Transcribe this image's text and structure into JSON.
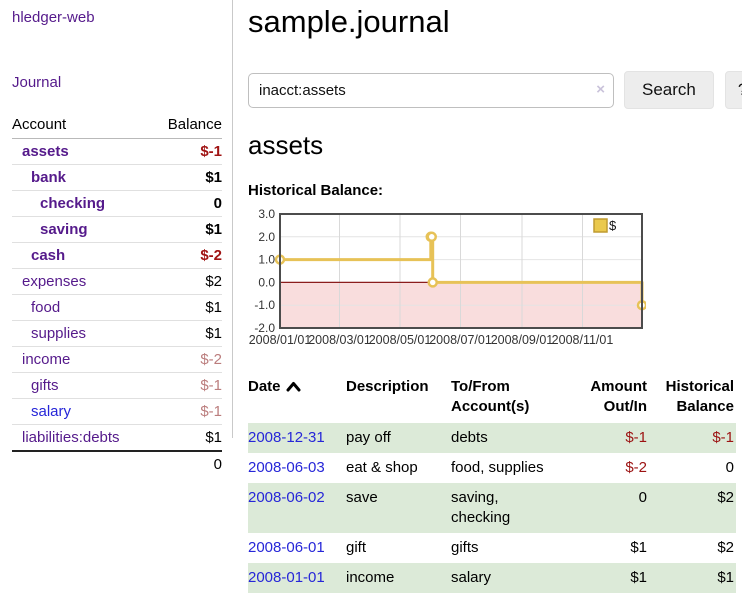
{
  "app": {
    "brand": "hledger-web"
  },
  "sidebar": {
    "journal_link": "Journal",
    "header": {
      "account": "Account",
      "balance": "Balance"
    },
    "accounts": [
      {
        "name": "assets",
        "balance": "$-1"
      },
      {
        "name": "bank",
        "balance": "$1"
      },
      {
        "name": "checking",
        "balance": "0"
      },
      {
        "name": "saving",
        "balance": "$1"
      },
      {
        "name": "cash",
        "balance": "$-2"
      },
      {
        "name": "expenses",
        "balance": "$2"
      },
      {
        "name": "food",
        "balance": "$1"
      },
      {
        "name": "supplies",
        "balance": "$1"
      },
      {
        "name": "income",
        "balance": "$-2"
      },
      {
        "name": "gifts",
        "balance": "$-1"
      },
      {
        "name": "salary",
        "balance": "$-1"
      },
      {
        "name": "liabilities:debts",
        "balance": "$1"
      }
    ],
    "total": "0"
  },
  "main": {
    "title": "sample.journal",
    "search": {
      "query": "inacct:assets",
      "clear_icon": "×",
      "search_button": "Search",
      "help_button": "?"
    },
    "account_heading": "assets",
    "chart_label": "Historical Balance:",
    "register": {
      "headers": [
        "Date",
        "Description",
        "To/From Account(s)",
        "Amount Out/In",
        "Historical Balance"
      ],
      "rows": [
        {
          "date": "2008-12-31",
          "description": "pay off",
          "accounts": "debts",
          "amount": "$-1",
          "balance": "$-1"
        },
        {
          "date": "2008-06-03",
          "description": "eat & shop",
          "accounts": "food, supplies",
          "amount": "$-2",
          "balance": "0"
        },
        {
          "date": "2008-06-02",
          "description": "save",
          "accounts": "saving, checking",
          "amount": "0",
          "balance": "$2"
        },
        {
          "date": "2008-06-01",
          "description": "gift",
          "accounts": "gifts",
          "amount": "$1",
          "balance": "$2"
        },
        {
          "date": "2008-01-01",
          "description": "income",
          "accounts": "salary",
          "amount": "$1",
          "balance": "$1"
        }
      ]
    }
  },
  "colors": {
    "link_purple": "#551a8b",
    "link_blue": "#2626d8",
    "negative_strong": "#a01414",
    "negative_soft": "#bb7d7d",
    "row_green": "#dcead8",
    "chart_line": "#e7c257"
  },
  "chart_data": {
    "type": "line",
    "step": true,
    "title": "Historical Balance",
    "series": [
      {
        "name": "$",
        "color": "#e7c257",
        "points": [
          [
            "2008-01-01",
            1
          ],
          [
            "2008-06-01",
            2
          ],
          [
            "2008-06-02",
            2
          ],
          [
            "2008-06-03",
            0
          ],
          [
            "2008-12-31",
            -1
          ]
        ]
      }
    ],
    "xlim": [
      "2008-01-01",
      "2008-12-31"
    ],
    "ylim": [
      -2,
      3
    ],
    "yticks": [
      3,
      2,
      1,
      0,
      -1,
      -2
    ],
    "ytick_labels": [
      "3.0",
      "2.0",
      "1.0",
      "0.0",
      "-1.0",
      "-2.0"
    ],
    "xticks": [
      "2008-01-01",
      "2008-03-01",
      "2008-05-01",
      "2008-07-01",
      "2008-09-01",
      "2008-11-01"
    ],
    "xtick_labels": [
      "2008/01/01",
      "2008/03/01",
      "2008/05/01",
      "2008/07/01",
      "2008/09/01",
      "2008/11/01"
    ],
    "grid": true,
    "legend_position": "top-right",
    "negative_region_color": "#f9dddd",
    "zero_line_color": "#8b1d1d"
  }
}
